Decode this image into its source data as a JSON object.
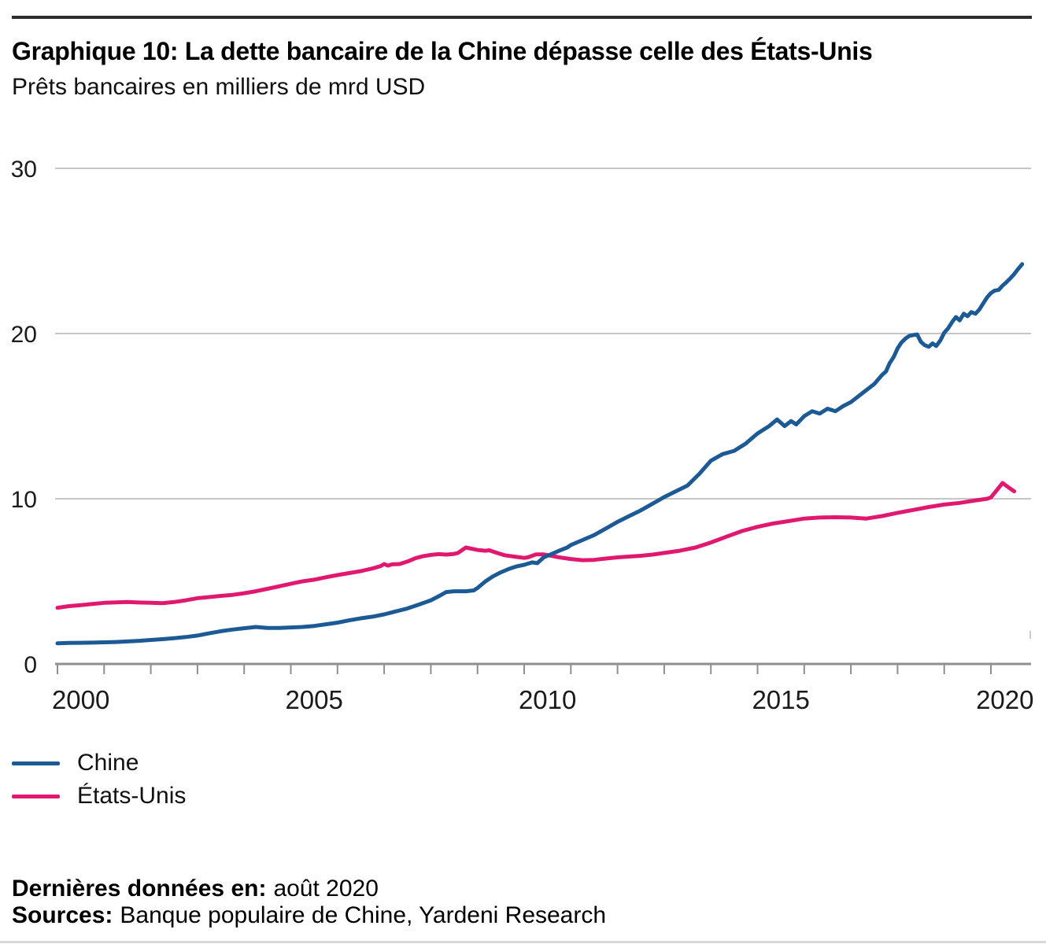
{
  "chart_data": {
    "type": "line",
    "title": "Graphique 10: La dette bancaire de la Chine dépasse celle des États-Unis",
    "subtitle": "Prêts bancaires en milliers de mrd USD",
    "xlabel": "",
    "ylabel": "",
    "x_range": [
      1999.9,
      2020.86
    ],
    "ylim": [
      0,
      30
    ],
    "grid": "horizontal",
    "legend_position": "bottom-left",
    "y_ticks": [
      {
        "text": "0",
        "value": 0
      },
      {
        "text": "10",
        "value": 10
      },
      {
        "text": "20",
        "value": 20
      },
      {
        "text": "30",
        "value": 30
      }
    ],
    "x_tick_years": [
      2000,
      2001,
      2002,
      2003,
      2004,
      2005,
      2006,
      2007,
      2008,
      2009,
      2010,
      2011,
      2012,
      2013,
      2014,
      2015,
      2016,
      2017,
      2018,
      2019,
      2020
    ],
    "x_labels": [
      {
        "text": "2000",
        "pos": 2000.5
      },
      {
        "text": "2005",
        "pos": 2005.5
      },
      {
        "text": "2010",
        "pos": 2010.5
      },
      {
        "text": "2015",
        "pos": 2015.5
      },
      {
        "text": "2020",
        "pos": 2020.3
      }
    ],
    "series": [
      {
        "name": "Chine",
        "slug": "chine-line",
        "color": "#1b5a94",
        "points": [
          [
            2000.0,
            1.25
          ],
          [
            2000.25,
            1.27
          ],
          [
            2000.5,
            1.28
          ],
          [
            2000.75,
            1.29
          ],
          [
            2001.0,
            1.31
          ],
          [
            2001.25,
            1.33
          ],
          [
            2001.5,
            1.36
          ],
          [
            2001.75,
            1.4
          ],
          [
            2002.0,
            1.45
          ],
          [
            2002.25,
            1.5
          ],
          [
            2002.5,
            1.56
          ],
          [
            2002.75,
            1.63
          ],
          [
            2003.0,
            1.72
          ],
          [
            2003.25,
            1.85
          ],
          [
            2003.5,
            1.98
          ],
          [
            2003.75,
            2.08
          ],
          [
            2004.0,
            2.16
          ],
          [
            2004.25,
            2.24
          ],
          [
            2004.5,
            2.18
          ],
          [
            2004.75,
            2.18
          ],
          [
            2005.0,
            2.21
          ],
          [
            2005.25,
            2.24
          ],
          [
            2005.5,
            2.3
          ],
          [
            2005.75,
            2.4
          ],
          [
            2006.0,
            2.5
          ],
          [
            2006.25,
            2.64
          ],
          [
            2006.5,
            2.76
          ],
          [
            2006.75,
            2.86
          ],
          [
            2007.0,
            3.0
          ],
          [
            2007.25,
            3.18
          ],
          [
            2007.5,
            3.36
          ],
          [
            2007.75,
            3.6
          ],
          [
            2008.0,
            3.85
          ],
          [
            2008.17,
            4.1
          ],
          [
            2008.33,
            4.35
          ],
          [
            2008.5,
            4.4
          ],
          [
            2008.75,
            4.4
          ],
          [
            2008.92,
            4.45
          ],
          [
            2009.0,
            4.6
          ],
          [
            2009.17,
            5.0
          ],
          [
            2009.33,
            5.3
          ],
          [
            2009.5,
            5.55
          ],
          [
            2009.67,
            5.75
          ],
          [
            2009.83,
            5.9
          ],
          [
            2010.0,
            6.0
          ],
          [
            2010.17,
            6.15
          ],
          [
            2010.28,
            6.1
          ],
          [
            2010.42,
            6.45
          ],
          [
            2010.5,
            6.55
          ],
          [
            2010.58,
            6.65
          ],
          [
            2010.75,
            6.85
          ],
          [
            2010.92,
            7.05
          ],
          [
            2011.0,
            7.2
          ],
          [
            2011.25,
            7.5
          ],
          [
            2011.5,
            7.8
          ],
          [
            2011.75,
            8.2
          ],
          [
            2012.0,
            8.6
          ],
          [
            2012.25,
            8.95
          ],
          [
            2012.5,
            9.3
          ],
          [
            2012.75,
            9.7
          ],
          [
            2013.0,
            10.1
          ],
          [
            2013.25,
            10.45
          ],
          [
            2013.5,
            10.8
          ],
          [
            2013.75,
            11.5
          ],
          [
            2014.0,
            12.3
          ],
          [
            2014.25,
            12.7
          ],
          [
            2014.5,
            12.9
          ],
          [
            2014.75,
            13.35
          ],
          [
            2015.0,
            13.95
          ],
          [
            2015.25,
            14.4
          ],
          [
            2015.42,
            14.8
          ],
          [
            2015.58,
            14.4
          ],
          [
            2015.72,
            14.7
          ],
          [
            2015.83,
            14.5
          ],
          [
            2016.0,
            15.0
          ],
          [
            2016.17,
            15.3
          ],
          [
            2016.33,
            15.15
          ],
          [
            2016.5,
            15.45
          ],
          [
            2016.67,
            15.3
          ],
          [
            2016.83,
            15.6
          ],
          [
            2017.0,
            15.85
          ],
          [
            2017.25,
            16.4
          ],
          [
            2017.5,
            16.95
          ],
          [
            2017.67,
            17.5
          ],
          [
            2017.75,
            17.7
          ],
          [
            2017.83,
            18.2
          ],
          [
            2017.92,
            18.6
          ],
          [
            2018.0,
            19.1
          ],
          [
            2018.08,
            19.45
          ],
          [
            2018.17,
            19.7
          ],
          [
            2018.25,
            19.85
          ],
          [
            2018.33,
            19.9
          ],
          [
            2018.42,
            19.95
          ],
          [
            2018.5,
            19.5
          ],
          [
            2018.58,
            19.3
          ],
          [
            2018.67,
            19.2
          ],
          [
            2018.75,
            19.4
          ],
          [
            2018.83,
            19.25
          ],
          [
            2018.92,
            19.6
          ],
          [
            2019.0,
            20.05
          ],
          [
            2019.08,
            20.3
          ],
          [
            2019.17,
            20.7
          ],
          [
            2019.25,
            21.0
          ],
          [
            2019.33,
            20.8
          ],
          [
            2019.42,
            21.2
          ],
          [
            2019.5,
            21.05
          ],
          [
            2019.58,
            21.3
          ],
          [
            2019.67,
            21.2
          ],
          [
            2019.75,
            21.45
          ],
          [
            2019.83,
            21.8
          ],
          [
            2019.92,
            22.2
          ],
          [
            2020.0,
            22.45
          ],
          [
            2020.08,
            22.6
          ],
          [
            2020.17,
            22.65
          ],
          [
            2020.25,
            22.9
          ],
          [
            2020.33,
            23.1
          ],
          [
            2020.42,
            23.35
          ],
          [
            2020.5,
            23.6
          ],
          [
            2020.58,
            23.9
          ],
          [
            2020.67,
            24.2
          ]
        ]
      },
      {
        "name": "États-Unis",
        "slug": "etats-unis-line",
        "color": "#e0186f",
        "points": [
          [
            2000.0,
            3.4
          ],
          [
            2000.25,
            3.5
          ],
          [
            2000.5,
            3.56
          ],
          [
            2000.75,
            3.63
          ],
          [
            2001.0,
            3.7
          ],
          [
            2001.25,
            3.73
          ],
          [
            2001.5,
            3.75
          ],
          [
            2001.75,
            3.72
          ],
          [
            2002.0,
            3.7
          ],
          [
            2002.25,
            3.68
          ],
          [
            2002.5,
            3.75
          ],
          [
            2002.75,
            3.85
          ],
          [
            2003.0,
            3.98
          ],
          [
            2003.25,
            4.05
          ],
          [
            2003.5,
            4.12
          ],
          [
            2003.75,
            4.18
          ],
          [
            2004.0,
            4.28
          ],
          [
            2004.25,
            4.4
          ],
          [
            2004.5,
            4.55
          ],
          [
            2004.75,
            4.7
          ],
          [
            2005.0,
            4.85
          ],
          [
            2005.25,
            5.0
          ],
          [
            2005.5,
            5.1
          ],
          [
            2005.75,
            5.25
          ],
          [
            2006.0,
            5.38
          ],
          [
            2006.25,
            5.5
          ],
          [
            2006.5,
            5.62
          ],
          [
            2006.75,
            5.78
          ],
          [
            2006.92,
            5.92
          ],
          [
            2007.0,
            6.05
          ],
          [
            2007.08,
            5.95
          ],
          [
            2007.17,
            6.03
          ],
          [
            2007.33,
            6.05
          ],
          [
            2007.5,
            6.2
          ],
          [
            2007.67,
            6.4
          ],
          [
            2007.83,
            6.52
          ],
          [
            2008.0,
            6.6
          ],
          [
            2008.17,
            6.65
          ],
          [
            2008.33,
            6.62
          ],
          [
            2008.5,
            6.66
          ],
          [
            2008.58,
            6.72
          ],
          [
            2008.75,
            7.05
          ],
          [
            2008.83,
            7.0
          ],
          [
            2009.0,
            6.9
          ],
          [
            2009.17,
            6.85
          ],
          [
            2009.25,
            6.88
          ],
          [
            2009.42,
            6.72
          ],
          [
            2009.58,
            6.58
          ],
          [
            2009.83,
            6.48
          ],
          [
            2010.0,
            6.42
          ],
          [
            2010.08,
            6.45
          ],
          [
            2010.25,
            6.63
          ],
          [
            2010.42,
            6.63
          ],
          [
            2010.58,
            6.55
          ],
          [
            2010.75,
            6.45
          ],
          [
            2011.0,
            6.35
          ],
          [
            2011.25,
            6.28
          ],
          [
            2011.5,
            6.3
          ],
          [
            2011.75,
            6.38
          ],
          [
            2012.0,
            6.45
          ],
          [
            2012.25,
            6.5
          ],
          [
            2012.5,
            6.55
          ],
          [
            2012.75,
            6.62
          ],
          [
            2013.0,
            6.72
          ],
          [
            2013.33,
            6.85
          ],
          [
            2013.67,
            7.05
          ],
          [
            2014.0,
            7.35
          ],
          [
            2014.33,
            7.7
          ],
          [
            2014.67,
            8.05
          ],
          [
            2015.0,
            8.3
          ],
          [
            2015.33,
            8.5
          ],
          [
            2015.67,
            8.65
          ],
          [
            2016.0,
            8.8
          ],
          [
            2016.33,
            8.86
          ],
          [
            2016.67,
            8.88
          ],
          [
            2017.0,
            8.86
          ],
          [
            2017.33,
            8.8
          ],
          [
            2017.67,
            8.95
          ],
          [
            2018.0,
            9.15
          ],
          [
            2018.33,
            9.32
          ],
          [
            2018.67,
            9.5
          ],
          [
            2019.0,
            9.65
          ],
          [
            2019.33,
            9.75
          ],
          [
            2019.67,
            9.9
          ],
          [
            2019.92,
            10.0
          ],
          [
            2020.0,
            10.08
          ],
          [
            2020.25,
            10.95
          ],
          [
            2020.42,
            10.6
          ],
          [
            2020.5,
            10.45
          ]
        ]
      }
    ],
    "colors": {
      "gridline": "#c6c6c6",
      "axis": "#8f8f8f",
      "tick_label": "#1a1a1a",
      "stray_tick": "#cccccc"
    }
  },
  "footer": {
    "last_data_label": "Dernières données en:",
    "last_data_value": "août 2020",
    "sources_label": "Sources:",
    "sources_value": "Banque populaire de Chine, Yardeni Research"
  }
}
